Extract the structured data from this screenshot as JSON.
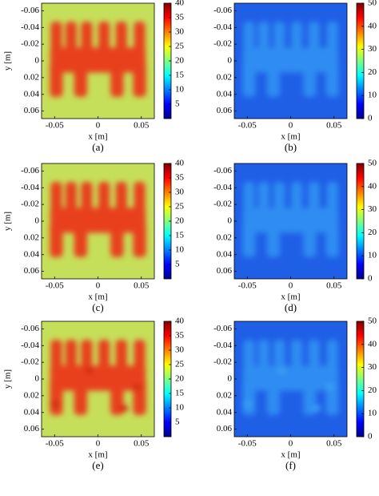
{
  "panels": [
    {
      "label": "(a)",
      "xlabel": "x [m]",
      "ylabel": "y [m]",
      "colormap": "warm",
      "xlim": [
        -0.065,
        0.065
      ],
      "ylim": [
        -0.069,
        0.069
      ],
      "xticks": [
        -0.05,
        0,
        0.05
      ],
      "yticks": [
        -0.06,
        -0.04,
        -0.02,
        0,
        0.02,
        0.04,
        0.06
      ],
      "clim": [
        0,
        40
      ],
      "cticks": [
        5,
        10,
        15,
        20,
        25,
        30,
        35,
        40
      ]
    },
    {
      "label": "(b)",
      "xlabel": "x [m]",
      "colormap": "cool",
      "xlim": [
        -0.065,
        0.065
      ],
      "ylim": [
        -0.069,
        0.069
      ],
      "xticks": [
        -0.05,
        0,
        0.05
      ],
      "yticks": [
        -0.06,
        -0.04,
        -0.02,
        0,
        0.02,
        0.04,
        0.06
      ],
      "clim": [
        0,
        50
      ],
      "cticks": [
        0,
        10,
        20,
        30,
        40,
        50
      ]
    },
    {
      "label": "(c)",
      "xlabel": "x [m]",
      "ylabel": "y [m]",
      "colormap": "warm",
      "xlim": [
        -0.065,
        0.065
      ],
      "ylim": [
        -0.069,
        0.069
      ],
      "xticks": [
        -0.05,
        0,
        0.05
      ],
      "yticks": [
        -0.06,
        -0.04,
        -0.02,
        0,
        0.02,
        0.04,
        0.06
      ],
      "clim": [
        0,
        40
      ],
      "cticks": [
        5,
        10,
        15,
        20,
        25,
        30,
        35,
        40
      ]
    },
    {
      "label": "(d)",
      "xlabel": "x [m]",
      "colormap": "cool",
      "xlim": [
        -0.065,
        0.065
      ],
      "ylim": [
        -0.069,
        0.069
      ],
      "xticks": [
        -0.05,
        0,
        0.05
      ],
      "yticks": [
        -0.06,
        -0.04,
        -0.02,
        0,
        0.02,
        0.04,
        0.06
      ],
      "clim": [
        0,
        50
      ],
      "cticks": [
        0,
        10,
        20,
        30,
        40,
        50
      ]
    },
    {
      "label": "(e)",
      "xlabel": "x [m]",
      "ylabel": "y [m]",
      "colormap": "warm",
      "xlim": [
        -0.065,
        0.065
      ],
      "ylim": [
        -0.069,
        0.069
      ],
      "xticks": [
        -0.05,
        0,
        0.05
      ],
      "yticks": [
        -0.06,
        -0.04,
        -0.02,
        0,
        0.02,
        0.04,
        0.06
      ],
      "clim": [
        0,
        40
      ],
      "cticks": [
        5,
        10,
        15,
        20,
        25,
        30,
        35,
        40
      ]
    },
    {
      "label": "(f)",
      "xlabel": "x [m]",
      "colormap": "cool",
      "xlim": [
        -0.065,
        0.065
      ],
      "ylim": [
        -0.069,
        0.069
      ],
      "xticks": [
        -0.05,
        0,
        0.05
      ],
      "yticks": [
        -0.06,
        -0.04,
        -0.02,
        0,
        0.02,
        0.04,
        0.06
      ],
      "clim": [
        0,
        50
      ],
      "cticks": [
        0,
        10,
        20,
        30,
        40,
        50
      ]
    }
  ]
}
